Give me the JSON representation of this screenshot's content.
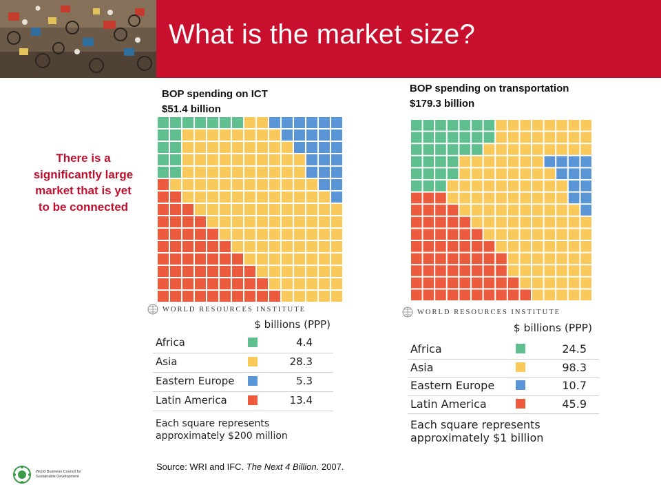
{
  "header": {
    "title": "What is the market size?",
    "banner_color": "#c8102e",
    "photo": "cycle-rickshaw-street-photo"
  },
  "callout": {
    "text": "There is a significantly large market that is yet to be connected",
    "color": "#c0102e"
  },
  "colors": {
    "Africa": "#5fbf8f",
    "Asia": "#f9c95c",
    "Eastern Europe": "#5a96d6",
    "Latin America": "#ec5b3e"
  },
  "charts": {
    "ict": {
      "heading_line1": "BOP spending on ICT",
      "heading_line2": "$51.4 billion",
      "logo_text": "WORLD RESOURCES INSTITUTE",
      "unit_header": "$ billions (PPP)",
      "rows": [
        {
          "region": "Africa",
          "value": "4.4"
        },
        {
          "region": "Asia",
          "value": "28.3"
        },
        {
          "region": "Eastern Europe",
          "value": "5.3"
        },
        {
          "region": "Latin America",
          "value": "13.4"
        }
      ],
      "note_line1": "Each square represents",
      "note_line2": "approximately $200 million"
    },
    "transport": {
      "heading_line1": "BOP spending on transportation",
      "heading_line2": "$179.3 billion",
      "logo_text": "WORLD RESOURCES INSTITUTE",
      "unit_header": "$ billions (PPP)",
      "rows": [
        {
          "region": "Africa",
          "value": "24.5"
        },
        {
          "region": "Asia",
          "value": "98.3"
        },
        {
          "region": "Eastern Europe",
          "value": "10.7"
        },
        {
          "region": "Latin America",
          "value": "45.9"
        }
      ],
      "note_line1": "Each square represents",
      "note_line2": "approximately $1 billion"
    }
  },
  "chart_data": [
    {
      "type": "waffle",
      "title": "BOP spending on ICT",
      "subtitle": "$51.4 billion",
      "unit": "$ billions (PPP)",
      "square_value": "approximately $200 million",
      "categories": [
        "Africa",
        "Asia",
        "Eastern Europe",
        "Latin America"
      ],
      "values": [
        4.4,
        28.3,
        5.3,
        13.4
      ],
      "total": 51.4
    },
    {
      "type": "waffle",
      "title": "BOP spending on transportation",
      "subtitle": "$179.3 billion",
      "unit": "$ billions (PPP)",
      "square_value": "approximately $1 billion",
      "categories": [
        "Africa",
        "Asia",
        "Eastern Europe",
        "Latin America"
      ],
      "values": [
        24.5,
        98.3,
        10.7,
        45.9
      ],
      "total": 179.3
    }
  ],
  "source": {
    "prefix": "Source: WRI and IFC. ",
    "title": "The Next 4 Billion.",
    "suffix": " 2007."
  },
  "footer_logo": {
    "line1": "World Business Council for",
    "line2": "Sustainable Development"
  }
}
